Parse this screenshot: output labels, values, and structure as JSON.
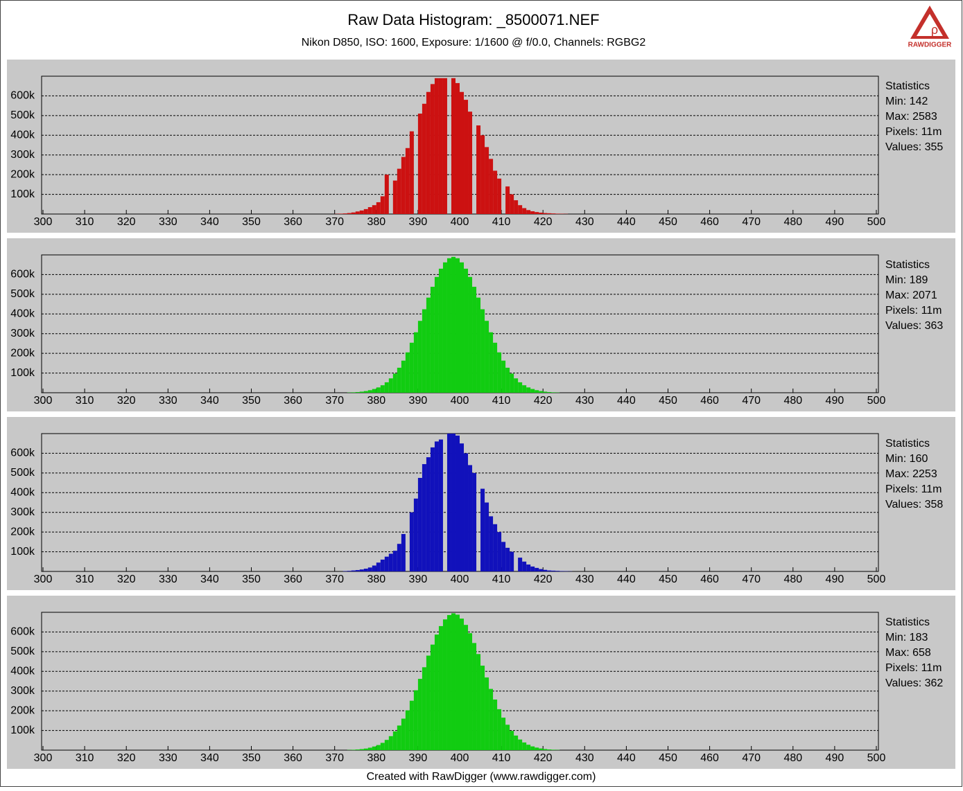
{
  "header": {
    "title": "Raw Data Histogram: _8500071.NEF",
    "subtitle": "Nikon D850, ISO: 1600, Exposure: 1/1600 @ f/0.0, Channels: RGBG2",
    "logo": "RAWDIGGER"
  },
  "footer": "Created with RawDigger (www.rawdigger.com)",
  "chart_data": [
    {
      "type": "histogram",
      "color": "#cc1111",
      "xlim": [
        300,
        500
      ],
      "xticks": [
        300,
        310,
        320,
        330,
        340,
        350,
        360,
        370,
        380,
        390,
        400,
        410,
        420,
        430,
        440,
        450,
        460,
        470,
        480,
        490,
        500
      ],
      "ylim": [
        0,
        700000
      ],
      "yticks": [
        {
          "value": 100000,
          "label": "100k"
        },
        {
          "value": 200000,
          "label": "200k"
        },
        {
          "value": 300000,
          "label": "300k"
        },
        {
          "value": 400000,
          "label": "400k"
        },
        {
          "value": 500000,
          "label": "500k"
        },
        {
          "value": 600000,
          "label": "600k"
        }
      ],
      "grid": true,
      "x": [
        370,
        371,
        372,
        373,
        374,
        375,
        376,
        377,
        378,
        379,
        380,
        381,
        382,
        383,
        384,
        385,
        386,
        387,
        388,
        389,
        390,
        391,
        392,
        393,
        394,
        395,
        396,
        397,
        398,
        399,
        400,
        401,
        402,
        403,
        404,
        405,
        406,
        407,
        408,
        409,
        410,
        411,
        412,
        413,
        414,
        415,
        416,
        417,
        418,
        419,
        420,
        421,
        422,
        423,
        424,
        425
      ],
      "values": [
        1000,
        2000,
        3000,
        5000,
        8000,
        13000,
        18000,
        25000,
        35000,
        45000,
        60000,
        90000,
        200000,
        0,
        170000,
        230000,
        290000,
        335000,
        420000,
        0,
        510000,
        560000,
        620000,
        660000,
        690000,
        690000,
        690000,
        0,
        690000,
        665000,
        620000,
        580000,
        520000,
        0,
        450000,
        400000,
        340000,
        280000,
        220000,
        180000,
        0,
        140000,
        100000,
        70000,
        45000,
        30000,
        20000,
        14000,
        10000,
        7000,
        5000,
        4000,
        3000,
        2000,
        1500,
        1000
      ],
      "stats": {
        "title": "Statistics",
        "lines": [
          "Min: 142",
          "Max: 2583",
          "Pixels: 11m",
          "Values: 355"
        ]
      }
    },
    {
      "type": "histogram",
      "color": "#11cc11",
      "xlim": [
        300,
        500
      ],
      "xticks": [
        300,
        310,
        320,
        330,
        340,
        350,
        360,
        370,
        380,
        390,
        400,
        410,
        420,
        430,
        440,
        450,
        460,
        470,
        480,
        490,
        500
      ],
      "ylim": [
        0,
        700000
      ],
      "yticks": [
        {
          "value": 100000,
          "label": "100k"
        },
        {
          "value": 200000,
          "label": "200k"
        },
        {
          "value": 300000,
          "label": "300k"
        },
        {
          "value": 400000,
          "label": "400k"
        },
        {
          "value": 500000,
          "label": "500k"
        },
        {
          "value": 600000,
          "label": "600k"
        }
      ],
      "grid": true,
      "x": [
        373,
        374,
        375,
        376,
        377,
        378,
        379,
        380,
        381,
        382,
        383,
        384,
        385,
        386,
        387,
        388,
        389,
        390,
        391,
        392,
        393,
        394,
        395,
        396,
        397,
        398,
        399,
        400,
        401,
        402,
        403,
        404,
        405,
        406,
        407,
        408,
        409,
        410,
        411,
        412,
        413,
        414,
        415,
        416,
        417,
        418,
        419,
        420,
        421,
        422,
        423
      ],
      "values": [
        1300,
        2200,
        3500,
        5500,
        8500,
        13000,
        19000,
        27000,
        38000,
        53000,
        73000,
        97000,
        127000,
        163000,
        205000,
        254000,
        307000,
        365000,
        424000,
        483000,
        538000,
        588000,
        630000,
        662000,
        683000,
        690000,
        683000,
        662000,
        630000,
        588000,
        538000,
        483000,
        424000,
        365000,
        307000,
        254000,
        205000,
        163000,
        127000,
        97000,
        73000,
        53000,
        38000,
        27000,
        19000,
        13000,
        8500,
        5500,
        3500,
        2200,
        1300
      ],
      "stats": {
        "title": "Statistics",
        "lines": [
          "Min: 189",
          "Max: 2071",
          "Pixels: 11m",
          "Values: 363"
        ]
      }
    },
    {
      "type": "histogram",
      "color": "#1111bb",
      "xlim": [
        300,
        500
      ],
      "xticks": [
        300,
        310,
        320,
        330,
        340,
        350,
        360,
        370,
        380,
        390,
        400,
        410,
        420,
        430,
        440,
        450,
        460,
        470,
        480,
        490,
        500
      ],
      "ylim": [
        0,
        700000
      ],
      "yticks": [
        {
          "value": 100000,
          "label": "100k"
        },
        {
          "value": 200000,
          "label": "200k"
        },
        {
          "value": 300000,
          "label": "300k"
        },
        {
          "value": 400000,
          "label": "400k"
        },
        {
          "value": 500000,
          "label": "500k"
        },
        {
          "value": 600000,
          "label": "600k"
        }
      ],
      "grid": true,
      "x": [
        372,
        373,
        374,
        375,
        376,
        377,
        378,
        379,
        380,
        381,
        382,
        383,
        384,
        385,
        386,
        387,
        388,
        389,
        390,
        391,
        392,
        393,
        394,
        395,
        396,
        397,
        398,
        399,
        400,
        401,
        402,
        403,
        404,
        405,
        406,
        407,
        408,
        409,
        410,
        411,
        412,
        413,
        414,
        415,
        416,
        417,
        418,
        419,
        420,
        421,
        422,
        423,
        424,
        425,
        426
      ],
      "values": [
        2000,
        3000,
        5000,
        7000,
        10000,
        14000,
        20000,
        30000,
        45000,
        60000,
        75000,
        90000,
        105000,
        140000,
        190000,
        0,
        300000,
        370000,
        475000,
        545000,
        580000,
        630000,
        660000,
        670000,
        0,
        700000,
        700000,
        690000,
        650000,
        600000,
        540000,
        500000,
        0,
        420000,
        350000,
        280000,
        240000,
        200000,
        150000,
        120000,
        100000,
        0,
        70000,
        50000,
        35000,
        25000,
        18000,
        12000,
        8000,
        5000,
        4000,
        3000,
        2000,
        1500,
        1000
      ],
      "stats": {
        "title": "Statistics",
        "lines": [
          "Min: 160",
          "Max: 2253",
          "Pixels: 11m",
          "Values: 358"
        ]
      }
    },
    {
      "type": "histogram",
      "color": "#11cc11",
      "xlim": [
        300,
        500
      ],
      "xticks": [
        300,
        310,
        320,
        330,
        340,
        350,
        360,
        370,
        380,
        390,
        400,
        410,
        420,
        430,
        440,
        450,
        460,
        470,
        480,
        490,
        500
      ],
      "ylim": [
        0,
        700000
      ],
      "yticks": [
        {
          "value": 100000,
          "label": "100k"
        },
        {
          "value": 200000,
          "label": "200k"
        },
        {
          "value": 300000,
          "label": "300k"
        },
        {
          "value": 400000,
          "label": "400k"
        },
        {
          "value": 500000,
          "label": "500k"
        },
        {
          "value": 600000,
          "label": "600k"
        }
      ],
      "grid": true,
      "x": [
        373,
        374,
        375,
        376,
        377,
        378,
        379,
        380,
        381,
        382,
        383,
        384,
        385,
        386,
        387,
        388,
        389,
        390,
        391,
        392,
        393,
        394,
        395,
        396,
        397,
        398,
        399,
        400,
        401,
        402,
        403,
        404,
        405,
        406,
        407,
        408,
        409,
        410,
        411,
        412,
        413,
        414,
        415,
        416,
        417,
        418,
        419,
        420,
        421,
        422,
        423
      ],
      "values": [
        1200,
        2000,
        3300,
        5200,
        8000,
        12500,
        18500,
        26000,
        37000,
        52000,
        71000,
        95000,
        125000,
        160000,
        202000,
        251000,
        304000,
        362000,
        421000,
        480000,
        536000,
        587000,
        630000,
        664000,
        686000,
        695000,
        688000,
        668000,
        636000,
        594000,
        544000,
        488000,
        429000,
        369000,
        311000,
        257000,
        208000,
        165000,
        129000,
        98000,
        74000,
        54000,
        39000,
        27500,
        19000,
        13000,
        8500,
        5500,
        3500,
        2200,
        1300
      ],
      "stats": {
        "title": "Statistics",
        "lines": [
          "Min: 183",
          "Max: 658",
          "Pixels: 11m",
          "Values: 362"
        ]
      }
    }
  ]
}
